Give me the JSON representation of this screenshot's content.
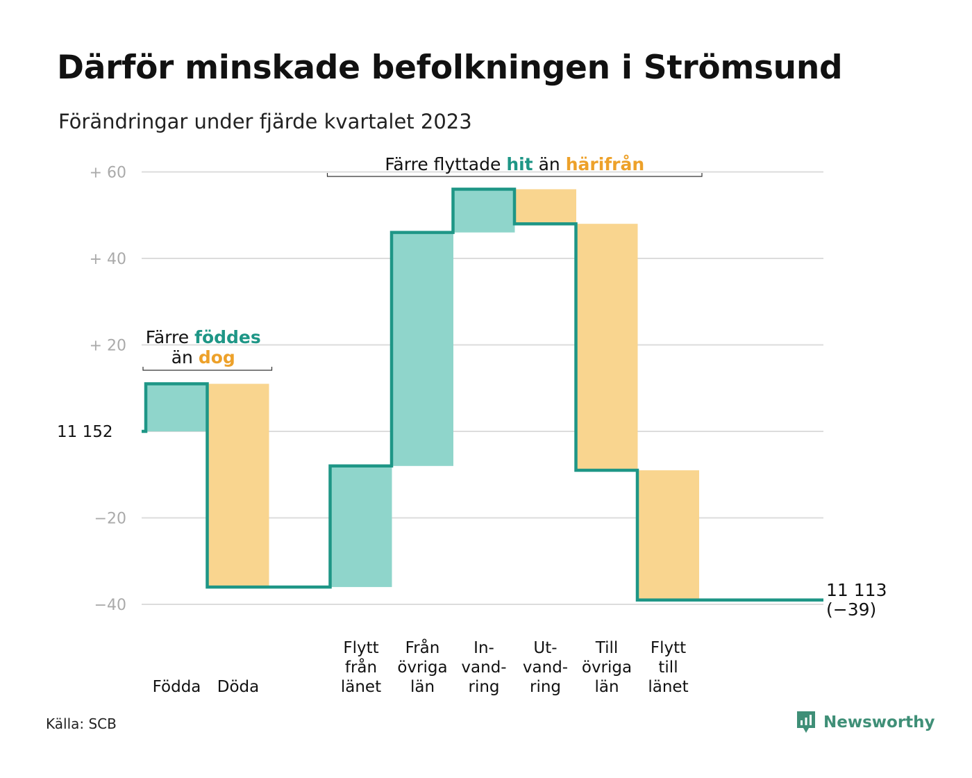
{
  "title": "Därför minskade befolkningen i Strömsund",
  "subtitle": "Förändringar under fjärde kvartalet 2023",
  "source": "Källa: SCB",
  "brand": "Newsworthy",
  "colors": {
    "line": "#1e9686",
    "inflow_fill": "#8fd5cb",
    "outflow_fill": "#f9d58f",
    "teal_text": "#1e9686",
    "orange_text": "#eda12a",
    "grid": "#dcdcdc",
    "tick": "#aaaaaa"
  },
  "chart_data": {
    "type": "waterfall",
    "start_value": "11  152",
    "end_value": "11 113",
    "end_change": "(−39)",
    "baseline": 0,
    "ylim": [
      -44,
      62
    ],
    "y_ticks": [
      {
        "value": 60,
        "label": "+  60"
      },
      {
        "value": 40,
        "label": "+  40"
      },
      {
        "value": 20,
        "label": "+  20"
      },
      {
        "value": 0,
        "label": "11  152"
      },
      {
        "value": -20,
        "label": "−20"
      },
      {
        "value": -40,
        "label": "−40"
      }
    ],
    "grid": true,
    "steps": [
      {
        "lines": [
          "Födda"
        ],
        "from": 0,
        "to": 11,
        "kind": "in"
      },
      {
        "lines": [
          "Döda"
        ],
        "from": 11,
        "to": -36,
        "kind": "out"
      },
      {
        "lines": [],
        "from": -36,
        "to": -36,
        "kind": "none"
      },
      {
        "lines": [
          "Flytt",
          "från",
          "länet"
        ],
        "from": -36,
        "to": -8,
        "kind": "in"
      },
      {
        "lines": [
          "Från",
          "övriga",
          "län"
        ],
        "from": -8,
        "to": 46,
        "kind": "in"
      },
      {
        "lines": [
          "In-",
          "vand-",
          "ring"
        ],
        "from": 46,
        "to": 56,
        "kind": "in"
      },
      {
        "lines": [
          "Ut-",
          "vand-",
          "ring"
        ],
        "from": 56,
        "to": 48,
        "kind": "out"
      },
      {
        "lines": [
          "Till",
          "övriga",
          "län"
        ],
        "from": 48,
        "to": -9,
        "kind": "out"
      },
      {
        "lines": [
          "Flytt",
          "till",
          "länet"
        ],
        "from": -9,
        "to": -39,
        "kind": "out"
      },
      {
        "lines": [],
        "from": -39,
        "to": -39,
        "kind": "none"
      }
    ],
    "annotations": [
      {
        "first": {
          "text": "Färre ",
          "accent": "föddes",
          "accent_color": "teal"
        },
        "second": {
          "text": "än ",
          "accent": "dog",
          "accent_color": "orange"
        },
        "from_step": 0,
        "to_step": 1
      },
      {
        "first": {
          "text": "Färre flyttade ",
          "accent": "hit",
          "accent_color": "teal"
        },
        "second": {
          "text": "än ",
          "accent": "härifrån",
          "accent_color": "orange"
        },
        "from_step": 3,
        "to_step": 8
      }
    ]
  }
}
